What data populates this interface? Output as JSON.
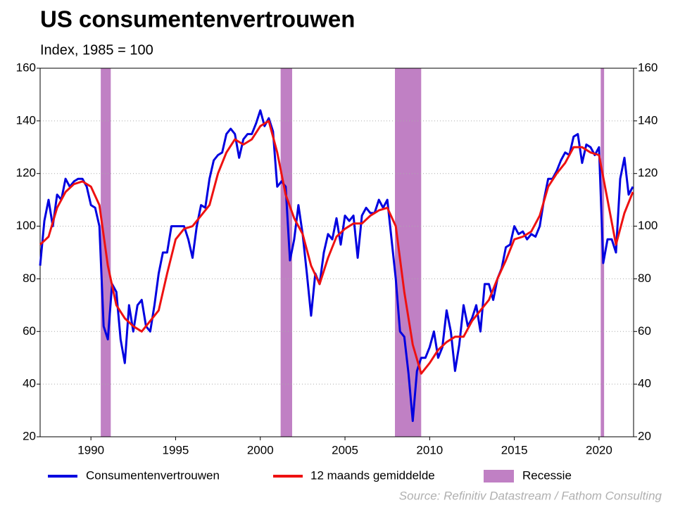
{
  "chart_data": {
    "type": "line",
    "title": "US consumentenvertrouwen",
    "subtitle": "Index, 1985 = 100",
    "source": "Source: Refinitiv Datastream / Fathom Consulting",
    "xlim": [
      1987,
      2022.04
    ],
    "xticks": [
      1990,
      1995,
      2000,
      2005,
      2010,
      2015,
      2020
    ],
    "ylim": [
      20,
      160
    ],
    "yticks": [
      20,
      40,
      60,
      80,
      100,
      120,
      140,
      160
    ],
    "y2lim": [
      20,
      160
    ],
    "y2ticks": [
      20,
      40,
      60,
      80,
      100,
      120,
      140,
      160
    ],
    "grid": true,
    "recessions": {
      "name": "Recessie",
      "color": "#c080c4",
      "periods": [
        [
          1990.58,
          1991.17
        ],
        [
          2001.2,
          2001.88
        ],
        [
          2007.95,
          2009.5
        ],
        [
          2020.1,
          2020.3
        ]
      ]
    },
    "series": [
      {
        "name": "Consumentenvertrouwen",
        "color": "#0000e0",
        "x": [
          1987.0,
          1987.25,
          1987.5,
          1987.75,
          1988.0,
          1988.25,
          1988.5,
          1988.75,
          1989.0,
          1989.25,
          1989.5,
          1989.75,
          1990.0,
          1990.25,
          1990.5,
          1990.75,
          1991.0,
          1991.25,
          1991.5,
          1991.75,
          1992.0,
          1992.25,
          1992.5,
          1992.75,
          1993.0,
          1993.25,
          1993.5,
          1993.75,
          1994.0,
          1994.25,
          1994.5,
          1994.75,
          1995.0,
          1995.25,
          1995.5,
          1995.75,
          1996.0,
          1996.25,
          1996.5,
          1996.75,
          1997.0,
          1997.25,
          1997.5,
          1997.75,
          1998.0,
          1998.25,
          1998.5,
          1998.75,
          1999.0,
          1999.25,
          1999.5,
          1999.75,
          2000.0,
          2000.25,
          2000.5,
          2000.75,
          2001.0,
          2001.25,
          2001.5,
          2001.75,
          2002.0,
          2002.25,
          2002.5,
          2002.75,
          2003.0,
          2003.25,
          2003.5,
          2003.75,
          2004.0,
          2004.25,
          2004.5,
          2004.75,
          2005.0,
          2005.25,
          2005.5,
          2005.75,
          2006.0,
          2006.25,
          2006.5,
          2006.75,
          2007.0,
          2007.25,
          2007.5,
          2007.75,
          2008.0,
          2008.25,
          2008.5,
          2008.75,
          2009.0,
          2009.25,
          2009.5,
          2009.75,
          2010.0,
          2010.25,
          2010.5,
          2010.75,
          2011.0,
          2011.25,
          2011.5,
          2011.75,
          2012.0,
          2012.25,
          2012.5,
          2012.75,
          2013.0,
          2013.25,
          2013.5,
          2013.75,
          2014.0,
          2014.25,
          2014.5,
          2014.75,
          2015.0,
          2015.25,
          2015.5,
          2015.75,
          2016.0,
          2016.25,
          2016.5,
          2016.75,
          2017.0,
          2017.25,
          2017.5,
          2017.75,
          2018.0,
          2018.25,
          2018.5,
          2018.75,
          2019.0,
          2019.25,
          2019.5,
          2019.75,
          2020.0,
          2020.25,
          2020.5,
          2020.75,
          2021.0,
          2021.25,
          2021.5,
          2021.75,
          2022.0
        ],
        "values": [
          85,
          102,
          110,
          100,
          112,
          110,
          118,
          115,
          117,
          118,
          118,
          115,
          108,
          107,
          100,
          62,
          57,
          78,
          75,
          57,
          48,
          70,
          60,
          70,
          72,
          62,
          60,
          70,
          82,
          90,
          90,
          100,
          100,
          100,
          100,
          95,
          88,
          100,
          108,
          107,
          118,
          125,
          127,
          128,
          135,
          137,
          135,
          126,
          133,
          135,
          135,
          139,
          144,
          138,
          141,
          136,
          115,
          117,
          115,
          87,
          95,
          108,
          97,
          82,
          66,
          82,
          78,
          90,
          97,
          95,
          103,
          93,
          104,
          102,
          104,
          88,
          104,
          107,
          105,
          105,
          110,
          107,
          110,
          95,
          80,
          60,
          58,
          44,
          26,
          45,
          50,
          50,
          54,
          60,
          50,
          54,
          68,
          60,
          45,
          55,
          70,
          62,
          65,
          70,
          60,
          78,
          78,
          72,
          80,
          84,
          92,
          93,
          100,
          97,
          98,
          95,
          97,
          96,
          100,
          110,
          118,
          118,
          121,
          125,
          128,
          127,
          134,
          135,
          124,
          131,
          130,
          127,
          130,
          86,
          95,
          95,
          90,
          118,
          126,
          112,
          115
        ]
      },
      {
        "name": "12 maands gemiddelde",
        "color": "#ee1111",
        "x": [
          1987.0,
          1987.5,
          1988.0,
          1988.5,
          1989.0,
          1989.5,
          1990.0,
          1990.5,
          1991.0,
          1991.5,
          1992.0,
          1992.5,
          1993.0,
          1993.5,
          1994.0,
          1994.5,
          1995.0,
          1995.5,
          1996.0,
          1996.5,
          1997.0,
          1997.5,
          1998.0,
          1998.5,
          1999.0,
          1999.5,
          2000.0,
          2000.5,
          2001.0,
          2001.5,
          2002.0,
          2002.5,
          2003.0,
          2003.5,
          2004.0,
          2004.5,
          2005.0,
          2005.5,
          2006.0,
          2006.5,
          2007.0,
          2007.5,
          2008.0,
          2008.5,
          2009.0,
          2009.5,
          2010.0,
          2010.5,
          2011.0,
          2011.5,
          2012.0,
          2012.5,
          2013.0,
          2013.5,
          2014.0,
          2014.5,
          2015.0,
          2015.5,
          2016.0,
          2016.5,
          2017.0,
          2017.5,
          2018.0,
          2018.5,
          2019.0,
          2019.5,
          2020.0,
          2020.5,
          2021.0,
          2021.5,
          2022.0
        ],
        "values": [
          93,
          96,
          107,
          113,
          116,
          117,
          115,
          108,
          85,
          70,
          65,
          62,
          60,
          64,
          68,
          82,
          95,
          99,
          100,
          104,
          108,
          120,
          128,
          133,
          131,
          133,
          138,
          140,
          128,
          112,
          103,
          97,
          85,
          78,
          88,
          96,
          99,
          101,
          101,
          104,
          106,
          107,
          100,
          75,
          55,
          44,
          48,
          53,
          56,
          58,
          58,
          64,
          68,
          72,
          80,
          87,
          95,
          96,
          98,
          104,
          115,
          120,
          124,
          130,
          130,
          128,
          127,
          110,
          93,
          105,
          113
        ]
      }
    ]
  }
}
